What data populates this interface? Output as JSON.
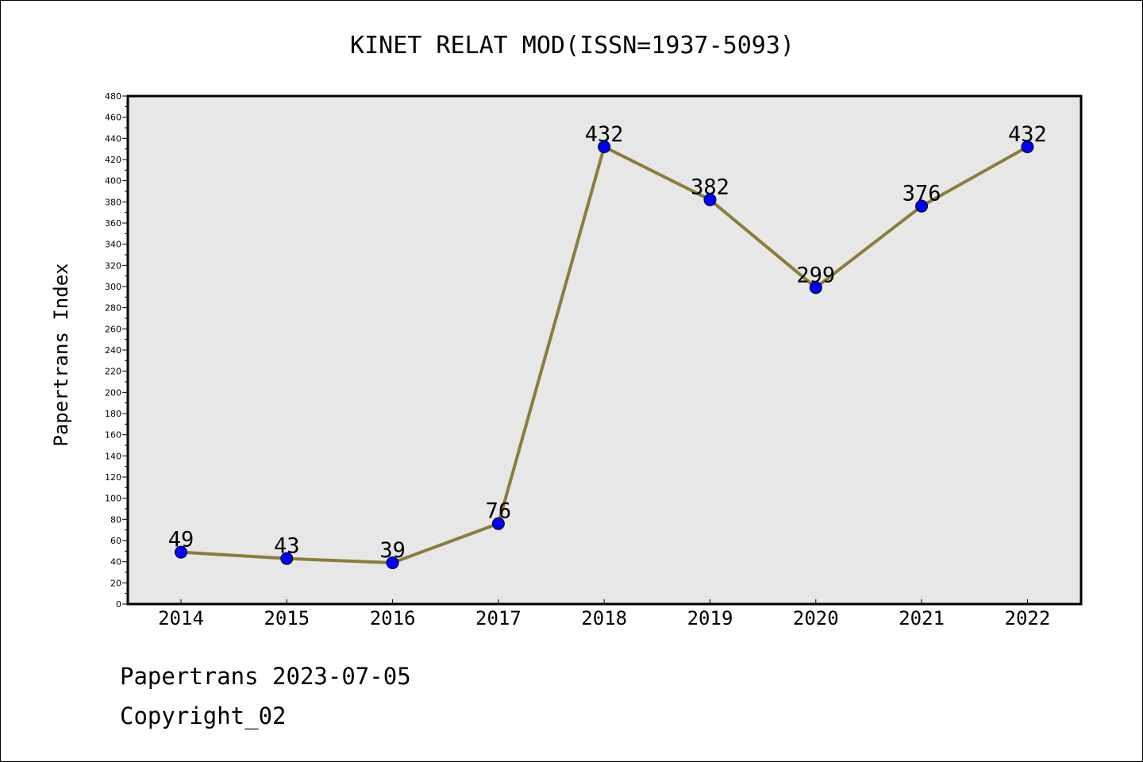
{
  "chart_data": {
    "type": "line",
    "title": "KINET RELAT MOD(ISSN=1937-5093)",
    "xlabel": "",
    "ylabel": "Papertrans Index",
    "categories": [
      "2014",
      "2015",
      "2016",
      "2017",
      "2018",
      "2019",
      "2020",
      "2021",
      "2022"
    ],
    "series": [
      {
        "values": [
          49,
          43,
          39,
          76,
          432,
          382,
          299,
          376,
          432
        ],
        "labels": [
          "49",
          "43",
          "39",
          "76",
          "432",
          "382",
          "299",
          "376",
          "432"
        ],
        "line_color": "#8b7d3a",
        "marker_color": "#0000ff"
      }
    ],
    "ylim": [
      0,
      480
    ],
    "y_ticks": [
      0,
      20,
      40,
      60,
      80,
      100,
      120,
      140,
      160,
      180,
      200,
      220,
      240,
      260,
      280,
      300,
      320,
      340,
      360,
      380,
      400,
      420,
      440,
      460,
      480
    ],
    "y_tick_labels": [
      "0",
      "20",
      "40",
      "60",
      "80",
      "100",
      "120",
      "140",
      "160",
      "180",
      "200",
      "220",
      "240",
      "260",
      "280",
      "300",
      "320",
      "340",
      "360",
      "380",
      "400",
      "420",
      "440",
      "460",
      "480"
    ],
    "grid": false,
    "legend": "none",
    "plot_background": "#e7e7e7"
  },
  "footer": {
    "source_line": "Papertrans 2023-07-05",
    "copyright_line": "Copyright_02"
  }
}
